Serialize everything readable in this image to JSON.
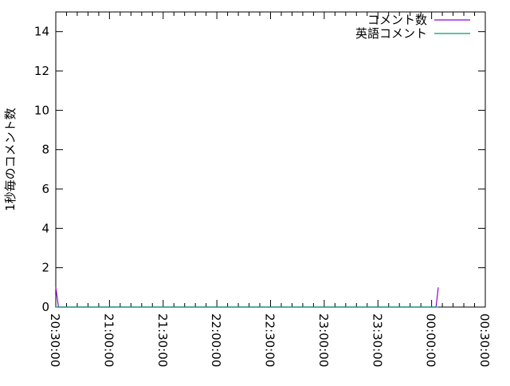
{
  "chart_data": {
    "type": "line",
    "title": "",
    "xlabel": "",
    "ylabel": "1秒毎のコメント数",
    "ylim": [
      0,
      15
    ],
    "yticks": [
      "0",
      "2",
      "4",
      "6",
      "8",
      "10",
      "12",
      "14"
    ],
    "xlim": [
      "20:30:00",
      "00:30:00"
    ],
    "xticks": [
      "20:30:00",
      "21:00:00",
      "21:30:00",
      "22:00:00",
      "22:30:00",
      "23:00:00",
      "23:30:00",
      "00:00:00",
      "00:30:00"
    ],
    "grid": false,
    "legend_position": "top-right",
    "series": [
      {
        "name": "コメント数",
        "color": "#9400d3",
        "points": [
          [
            "20:30:00",
            1
          ],
          [
            "20:31:30",
            0
          ],
          [
            "00:02:30",
            0
          ],
          [
            "00:03:45",
            1
          ]
        ]
      },
      {
        "name": "英語コメント",
        "color": "#009e73",
        "points": [
          [
            "20:30:00",
            0
          ],
          [
            "00:03:45",
            0
          ]
        ]
      }
    ]
  }
}
